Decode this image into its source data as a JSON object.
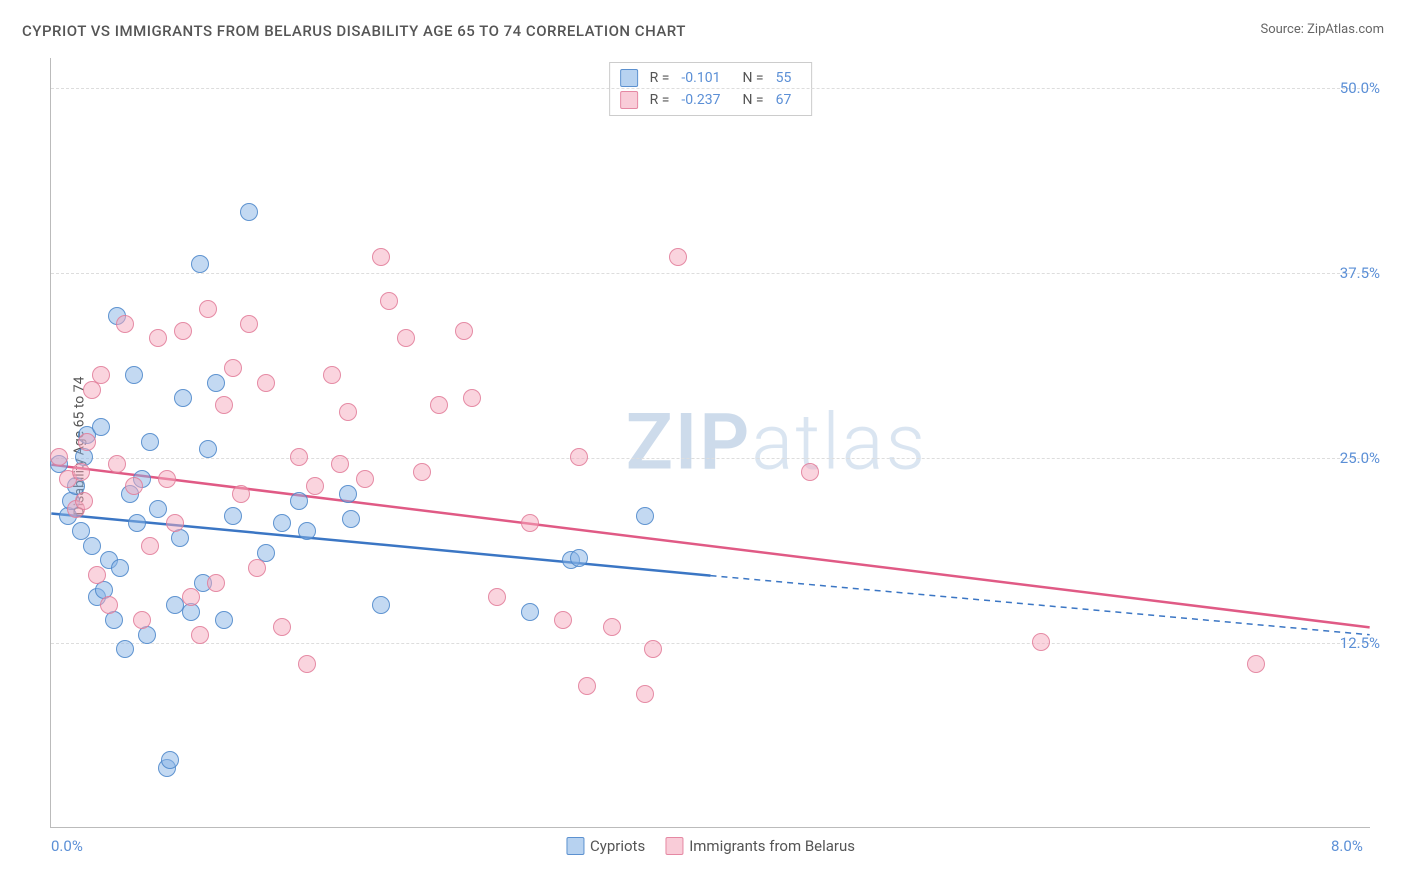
{
  "title": "CYPRIOT VS IMMIGRANTS FROM BELARUS DISABILITY AGE 65 TO 74 CORRELATION CHART",
  "source_prefix": "Source: ",
  "source": "ZipAtlas.com",
  "ylabel": "Disability Age 65 to 74",
  "watermark_bold": "ZIP",
  "watermark_light": "atlas",
  "chart": {
    "type": "scatter",
    "xlim": [
      0,
      8
    ],
    "ylim": [
      0,
      52
    ],
    "xticks": [
      {
        "v": 0,
        "label": "0.0%"
      },
      {
        "v": 8,
        "label": "8.0%"
      }
    ],
    "yticks": [
      {
        "v": 12.5,
        "label": "12.5%"
      },
      {
        "v": 25.0,
        "label": "25.0%"
      },
      {
        "v": 37.5,
        "label": "37.5%"
      },
      {
        "v": 50.0,
        "label": "50.0%"
      }
    ],
    "gridlines_y": [
      12.5,
      25.0,
      37.5,
      50.0
    ],
    "background_color": "#ffffff",
    "grid_color": "#dddddd",
    "axis_color": "#bbbbbb",
    "tick_color": "#5b8fd6",
    "series": [
      {
        "name": "Cypriots",
        "color": "#87b4e6",
        "border_color": "#4682c8",
        "R": "-0.101",
        "N": "55",
        "trend": {
          "x1": 0,
          "y1": 21.2,
          "x2_solid": 4.0,
          "y2_solid": 17.0,
          "x2_dashed": 8.0,
          "y2_dashed": 13.0,
          "stroke": "#3b76c4",
          "width": 2.5
        },
        "points": [
          [
            0.05,
            24.5
          ],
          [
            0.1,
            21.0
          ],
          [
            0.12,
            22.0
          ],
          [
            0.15,
            23.0
          ],
          [
            0.18,
            20.0
          ],
          [
            0.2,
            25.0
          ],
          [
            0.22,
            26.5
          ],
          [
            0.25,
            19.0
          ],
          [
            0.28,
            15.5
          ],
          [
            0.3,
            27.0
          ],
          [
            0.32,
            16.0
          ],
          [
            0.35,
            18.0
          ],
          [
            0.38,
            14.0
          ],
          [
            0.4,
            34.5
          ],
          [
            0.42,
            17.5
          ],
          [
            0.45,
            12.0
          ],
          [
            0.48,
            22.5
          ],
          [
            0.5,
            30.5
          ],
          [
            0.52,
            20.5
          ],
          [
            0.55,
            23.5
          ],
          [
            0.58,
            13.0
          ],
          [
            0.6,
            26.0
          ],
          [
            0.65,
            21.5
          ],
          [
            0.7,
            4.0
          ],
          [
            0.72,
            4.5
          ],
          [
            0.75,
            15.0
          ],
          [
            0.78,
            19.5
          ],
          [
            0.8,
            29.0
          ],
          [
            0.85,
            14.5
          ],
          [
            0.9,
            38.0
          ],
          [
            0.92,
            16.5
          ],
          [
            0.95,
            25.5
          ],
          [
            1.0,
            30.0
          ],
          [
            1.05,
            14.0
          ],
          [
            1.1,
            21.0
          ],
          [
            1.2,
            41.5
          ],
          [
            1.3,
            18.5
          ],
          [
            1.4,
            20.5
          ],
          [
            1.5,
            22.0
          ],
          [
            1.55,
            20.0
          ],
          [
            1.8,
            22.5
          ],
          [
            1.82,
            20.8
          ],
          [
            2.0,
            15.0
          ],
          [
            2.9,
            14.5
          ],
          [
            3.15,
            18.0
          ],
          [
            3.2,
            18.2
          ],
          [
            3.6,
            21.0
          ]
        ]
      },
      {
        "name": "Immigrants from Belarus",
        "color": "#f5aabe",
        "border_color": "#e17896",
        "R": "-0.237",
        "N": "67",
        "trend": {
          "x1": 0,
          "y1": 24.5,
          "x2_solid": 8.0,
          "y2_solid": 13.5,
          "stroke": "#e05a85",
          "width": 2.5
        },
        "points": [
          [
            0.05,
            25.0
          ],
          [
            0.1,
            23.5
          ],
          [
            0.15,
            21.5
          ],
          [
            0.18,
            24.0
          ],
          [
            0.2,
            22.0
          ],
          [
            0.22,
            26.0
          ],
          [
            0.25,
            29.5
          ],
          [
            0.28,
            17.0
          ],
          [
            0.3,
            30.5
          ],
          [
            0.35,
            15.0
          ],
          [
            0.4,
            24.5
          ],
          [
            0.45,
            34.0
          ],
          [
            0.5,
            23.0
          ],
          [
            0.55,
            14.0
          ],
          [
            0.6,
            19.0
          ],
          [
            0.65,
            33.0
          ],
          [
            0.7,
            23.5
          ],
          [
            0.75,
            20.5
          ],
          [
            0.8,
            33.5
          ],
          [
            0.85,
            15.5
          ],
          [
            0.9,
            13.0
          ],
          [
            0.95,
            35.0
          ],
          [
            1.0,
            16.5
          ],
          [
            1.05,
            28.5
          ],
          [
            1.1,
            31.0
          ],
          [
            1.15,
            22.5
          ],
          [
            1.2,
            34.0
          ],
          [
            1.25,
            17.5
          ],
          [
            1.3,
            30.0
          ],
          [
            1.4,
            13.5
          ],
          [
            1.5,
            25.0
          ],
          [
            1.55,
            11.0
          ],
          [
            1.6,
            23.0
          ],
          [
            1.7,
            30.5
          ],
          [
            1.75,
            24.5
          ],
          [
            1.8,
            28.0
          ],
          [
            1.9,
            23.5
          ],
          [
            2.0,
            38.5
          ],
          [
            2.05,
            35.5
          ],
          [
            2.15,
            33.0
          ],
          [
            2.25,
            24.0
          ],
          [
            2.35,
            28.5
          ],
          [
            2.5,
            33.5
          ],
          [
            2.55,
            29.0
          ],
          [
            2.7,
            15.5
          ],
          [
            2.9,
            20.5
          ],
          [
            3.1,
            14.0
          ],
          [
            3.2,
            25.0
          ],
          [
            3.25,
            9.5
          ],
          [
            3.4,
            13.5
          ],
          [
            3.6,
            9.0
          ],
          [
            3.65,
            12.0
          ],
          [
            3.8,
            38.5
          ],
          [
            4.6,
            24.0
          ],
          [
            6.0,
            12.5
          ],
          [
            7.3,
            11.0
          ]
        ]
      }
    ],
    "legend_top": {
      "rlabel": "R =",
      "nlabel": "N ="
    },
    "legend_bottom": [
      "Cypriots",
      "Immigrants from Belarus"
    ]
  }
}
